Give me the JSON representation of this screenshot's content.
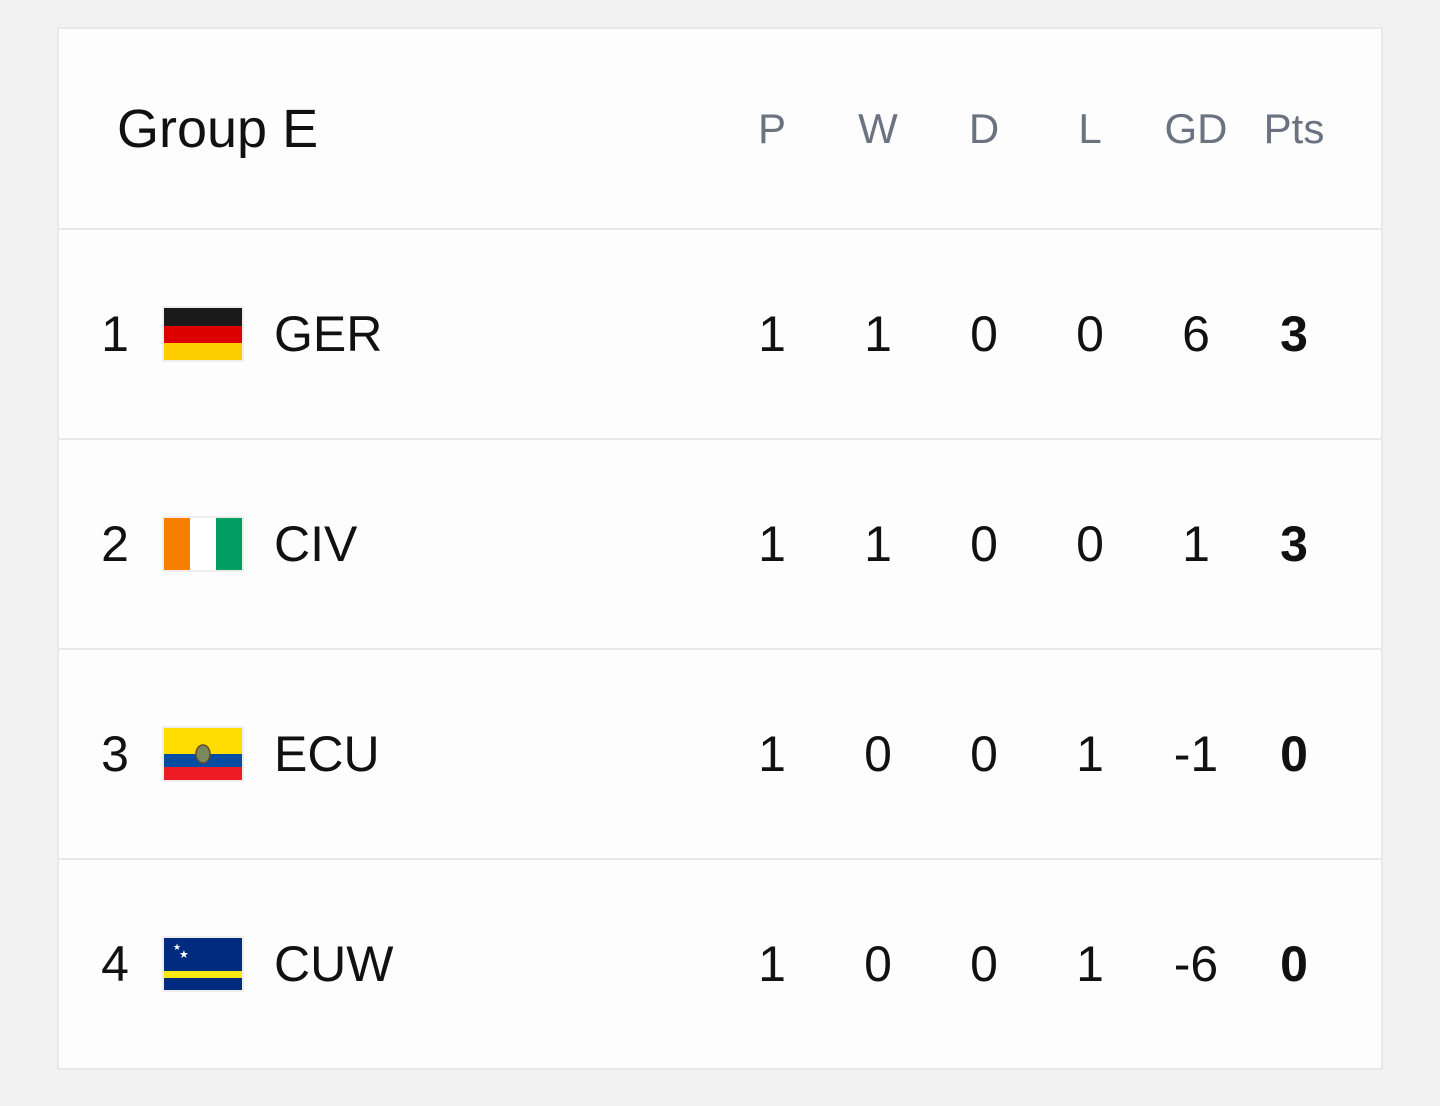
{
  "header": {
    "title": "Group E"
  },
  "table": {
    "columns": [
      "P",
      "W",
      "D",
      "L",
      "GD",
      "Pts"
    ],
    "rows": [
      {
        "rank": 1,
        "team": "GER",
        "values": [
          1,
          1,
          0,
          0,
          6,
          3
        ]
      },
      {
        "rank": 2,
        "team": "CIV",
        "values": [
          1,
          1,
          0,
          0,
          1,
          3
        ]
      },
      {
        "rank": 3,
        "team": "ECU",
        "values": [
          1,
          0,
          0,
          1,
          -1,
          0
        ]
      },
      {
        "rank": 4,
        "team": "CUW",
        "values": [
          1,
          0,
          0,
          1,
          -6,
          0
        ]
      }
    ]
  }
}
